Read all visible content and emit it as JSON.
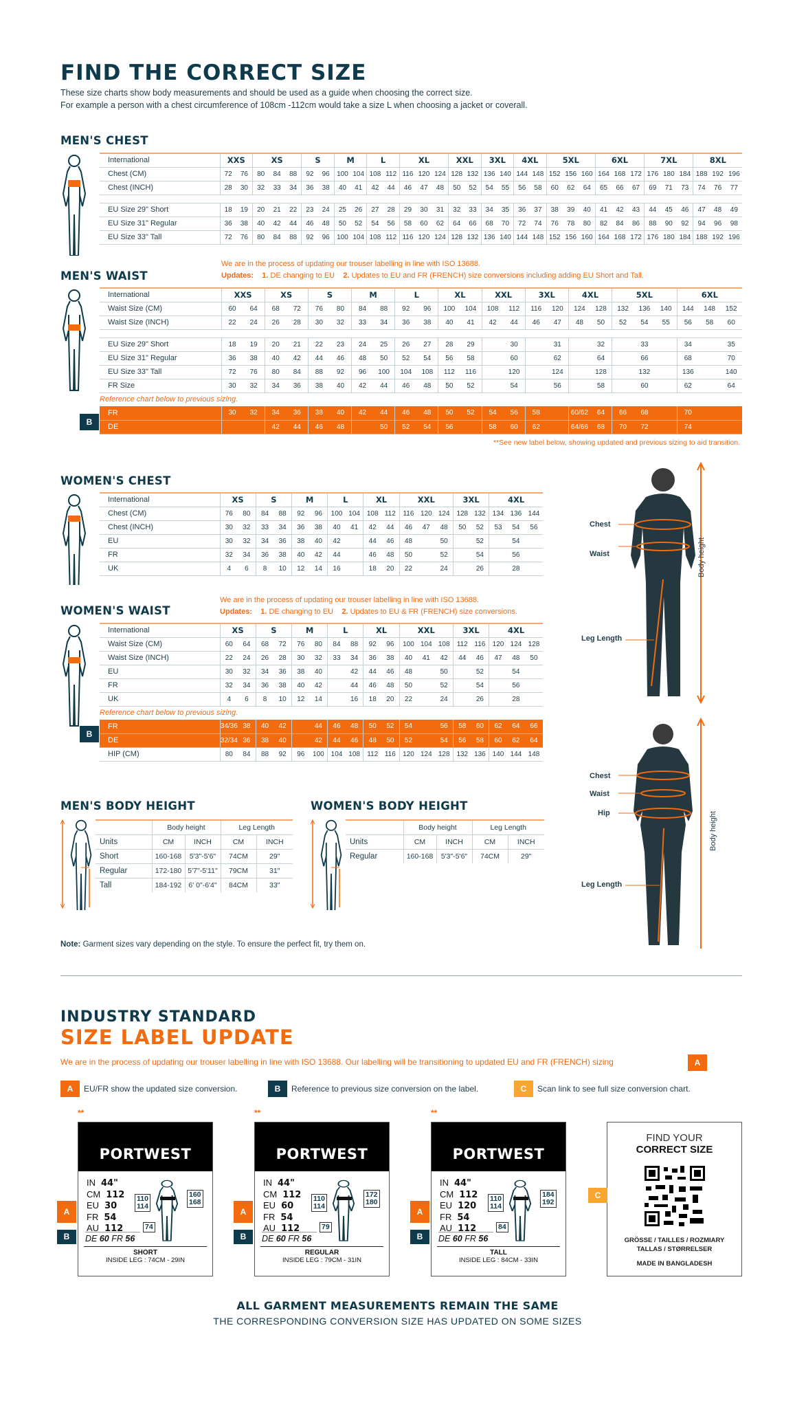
{
  "header": {
    "title": "FIND THE CORRECT SIZE",
    "intro": [
      "These size charts show body measurements and should be used as a guide when choosing the correct size.",
      "For example a person with a chest circumference of 108cm -112cm would take a size L when choosing a jacket or coverall."
    ]
  },
  "colors": {
    "navy": "#0f3a4b",
    "orange": "#f26b0f",
    "amber": "#f8a531"
  },
  "mens_chest": {
    "title": "MEN'S CHEST",
    "sizes": [
      {
        "label": "XXS",
        "span": 2
      },
      {
        "label": "XS",
        "span": 3
      },
      {
        "label": "S",
        "span": 2
      },
      {
        "label": "M",
        "span": 2
      },
      {
        "label": "L",
        "span": 2
      },
      {
        "label": "XL",
        "span": 3
      },
      {
        "label": "XXL",
        "span": 2
      },
      {
        "label": "3XL",
        "span": 2
      },
      {
        "label": "4XL",
        "span": 2
      },
      {
        "label": "5XL",
        "span": 3
      },
      {
        "label": "6XL",
        "span": 3
      },
      {
        "label": "7XL",
        "span": 3
      },
      {
        "label": "8XL",
        "span": 3
      }
    ],
    "header_label": "International",
    "rows": [
      {
        "label": "Chest (CM)",
        "values": [
          "72",
          "76",
          "80",
          "84",
          "88",
          "92",
          "96",
          "100",
          "104",
          "108",
          "112",
          "116",
          "120",
          "124",
          "128",
          "132",
          "136",
          "140",
          "144",
          "148",
          "152",
          "156",
          "160",
          "164",
          "168",
          "172",
          "176",
          "180",
          "184",
          "188",
          "192",
          "196"
        ]
      },
      {
        "label": "Chest (INCH)",
        "values": [
          "28",
          "30",
          "32",
          "33",
          "34",
          "36",
          "38",
          "40",
          "41",
          "42",
          "44",
          "46",
          "47",
          "48",
          "50",
          "52",
          "54",
          "55",
          "56",
          "58",
          "60",
          "62",
          "64",
          "65",
          "66",
          "67",
          "69",
          "71",
          "73",
          "74",
          "76",
          "77"
        ]
      },
      {
        "gap": true
      },
      {
        "label": "EU Size 29\" Short",
        "values": [
          "18",
          "19",
          "20",
          "21",
          "22",
          "23",
          "24",
          "25",
          "26",
          "27",
          "28",
          "29",
          "30",
          "31",
          "32",
          "33",
          "34",
          "35",
          "36",
          "37",
          "38",
          "39",
          "40",
          "41",
          "42",
          "43",
          "44",
          "45",
          "46",
          "47",
          "48",
          "49"
        ]
      },
      {
        "label": "EU Size 31\" Regular",
        "values": [
          "36",
          "38",
          "40",
          "42",
          "44",
          "46",
          "48",
          "50",
          "52",
          "54",
          "56",
          "58",
          "60",
          "62",
          "64",
          "66",
          "68",
          "70",
          "72",
          "74",
          "76",
          "78",
          "80",
          "82",
          "84",
          "86",
          "88",
          "90",
          "92",
          "94",
          "96",
          "98"
        ]
      },
      {
        "label": "EU Size 33\" Tall",
        "values": [
          "72",
          "76",
          "80",
          "84",
          "88",
          "92",
          "96",
          "100",
          "104",
          "108",
          "112",
          "116",
          "120",
          "124",
          "128",
          "132",
          "136",
          "140",
          "144",
          "148",
          "152",
          "156",
          "160",
          "164",
          "168",
          "172",
          "176",
          "180",
          "184",
          "188",
          "192",
          "196"
        ]
      }
    ]
  },
  "mens_waist": {
    "title": "MEN'S WAIST",
    "notice": "We are in the process of updating our trouser labelling in line with ISO 13688.",
    "updates_label": "Updates:",
    "update_1_num": "1.",
    "update_1": "DE changing to EU",
    "update_2_num": "2.",
    "update_2": "Updates to EU and FR (FRENCH) size conversions including adding EU Short and Tall.",
    "header_label": "International",
    "sizes": [
      {
        "label": "XXS",
        "span": 2
      },
      {
        "label": "XS",
        "span": 2
      },
      {
        "label": "S",
        "span": 2
      },
      {
        "label": "M",
        "span": 2
      },
      {
        "label": "L",
        "span": 2
      },
      {
        "label": "XL",
        "span": 2
      },
      {
        "label": "XXL",
        "span": 2
      },
      {
        "label": "3XL",
        "span": 2
      },
      {
        "label": "4XL",
        "span": 2
      },
      {
        "label": "5XL",
        "span": 3
      },
      {
        "label": "6XL",
        "span": 3
      }
    ],
    "rows": [
      {
        "label": "Waist Size (CM)",
        "values": [
          "60",
          "64",
          "68",
          "72",
          "76",
          "80",
          "84",
          "88",
          "92",
          "96",
          "100",
          "104",
          "108",
          "112",
          "116",
          "120",
          "124",
          "128",
          "132",
          "136",
          "140",
          "144",
          "148",
          "152"
        ]
      },
      {
        "label": "Waist Size (INCH)",
        "values": [
          "22",
          "24",
          "26",
          "28",
          "30",
          "32",
          "33",
          "34",
          "36",
          "38",
          "40",
          "41",
          "42",
          "44",
          "46",
          "47",
          "48",
          "50",
          "52",
          "54",
          "55",
          "56",
          "58",
          "60"
        ]
      },
      {
        "gap": true
      },
      {
        "label": "EU Size 29\" Short",
        "values": [
          "18",
          "19",
          "20",
          "21",
          "22",
          "23",
          "24",
          "25",
          "26",
          "27",
          "28",
          "29",
          "",
          "30",
          "",
          "31",
          "",
          "32",
          "",
          "33",
          "",
          "34",
          "",
          "35"
        ]
      },
      {
        "label": "EU Size 31\" Regular",
        "values": [
          "36",
          "38",
          "40",
          "42",
          "44",
          "46",
          "48",
          "50",
          "52",
          "54",
          "56",
          "58",
          "",
          "60",
          "",
          "62",
          "",
          "64",
          "",
          "66",
          "",
          "68",
          "",
          "70"
        ]
      },
      {
        "label": "EU Size 33\" Tall",
        "values": [
          "72",
          "76",
          "80",
          "84",
          "88",
          "92",
          "96",
          "100",
          "104",
          "108",
          "112",
          "116",
          "",
          "120",
          "",
          "124",
          "",
          "128",
          "",
          "132",
          "",
          "136",
          "",
          "140"
        ]
      },
      {
        "label": "FR Size",
        "values": [
          "30",
          "32",
          "34",
          "36",
          "38",
          "40",
          "42",
          "44",
          "46",
          "48",
          "50",
          "52",
          "",
          "54",
          "",
          "56",
          "",
          "58",
          "",
          "60",
          "",
          "62",
          "",
          "64"
        ]
      },
      {
        "ref": "Reference chart below to previous sizing."
      },
      {
        "label": "FR",
        "orange": true,
        "values": [
          "30",
          "32",
          "34",
          "36",
          "38",
          "40",
          "42",
          "44",
          "46",
          "48",
          "50",
          "52",
          "54",
          "56",
          "58",
          "",
          "60/62",
          "64",
          "66",
          "68",
          "",
          "70",
          "",
          ""
        ]
      },
      {
        "label": "DE",
        "orange": true,
        "values": [
          "",
          "",
          "42",
          "44",
          "46",
          "48",
          "",
          "50",
          "52",
          "54",
          "56",
          "",
          "58",
          "60",
          "62",
          "",
          "64/66",
          "68",
          "70",
          "72",
          "",
          "74",
          "",
          ""
        ]
      }
    ],
    "footnote": "**See new label below, showing updated and previous sizing to aid transition."
  },
  "womens_chest": {
    "title": "WOMEN'S CHEST",
    "header_label": "International",
    "sizes": [
      {
        "label": "XS",
        "span": 2
      },
      {
        "label": "S",
        "span": 2
      },
      {
        "label": "M",
        "span": 2
      },
      {
        "label": "L",
        "span": 2
      },
      {
        "label": "XL",
        "span": 2
      },
      {
        "label": "XXL",
        "span": 3
      },
      {
        "label": "3XL",
        "span": 2
      },
      {
        "label": "4XL",
        "span": 3
      }
    ],
    "rows": [
      {
        "label": "Chest (CM)",
        "values": [
          "76",
          "80",
          "84",
          "88",
          "92",
          "96",
          "100",
          "104",
          "108",
          "112",
          "116",
          "120",
          "124",
          "128",
          "132",
          "134",
          "136",
          "144"
        ]
      },
      {
        "label": "Chest (INCH)",
        "values": [
          "30",
          "32",
          "33",
          "34",
          "36",
          "38",
          "40",
          "41",
          "42",
          "44",
          "46",
          "47",
          "48",
          "50",
          "52",
          "53",
          "54",
          "56"
        ]
      },
      {
        "label": "EU",
        "values": [
          "30",
          "32",
          "34",
          "36",
          "38",
          "40",
          "42",
          "",
          "44",
          "46",
          "48",
          "",
          "50",
          "",
          "52",
          "",
          "54",
          ""
        ]
      },
      {
        "label": "FR",
        "values": [
          "32",
          "34",
          "36",
          "38",
          "40",
          "42",
          "44",
          "",
          "46",
          "48",
          "50",
          "",
          "52",
          "",
          "54",
          "",
          "56",
          ""
        ]
      },
      {
        "label": "UK",
        "values": [
          "4",
          "6",
          "8",
          "10",
          "12",
          "14",
          "16",
          "",
          "18",
          "20",
          "22",
          "",
          "24",
          "",
          "26",
          "",
          "28",
          ""
        ]
      }
    ]
  },
  "womens_waist": {
    "title": "WOMEN'S WAIST",
    "notice": "We are in the process of updating our trouser labelling in line with ISO 13688.",
    "updates_label": "Updates:",
    "update_1_num": "1.",
    "update_1": "DE changing to EU",
    "update_2_num": "2.",
    "update_2": "Updates to EU & FR (FRENCH) size conversions.",
    "header_label": "International",
    "sizes": [
      {
        "label": "XS",
        "span": 2
      },
      {
        "label": "S",
        "span": 2
      },
      {
        "label": "M",
        "span": 2
      },
      {
        "label": "L",
        "span": 2
      },
      {
        "label": "XL",
        "span": 2
      },
      {
        "label": "XXL",
        "span": 3
      },
      {
        "label": "3XL",
        "span": 2
      },
      {
        "label": "4XL",
        "span": 3
      }
    ],
    "rows": [
      {
        "label": "Waist Size (CM)",
        "values": [
          "60",
          "64",
          "68",
          "72",
          "76",
          "80",
          "84",
          "88",
          "92",
          "96",
          "100",
          "104",
          "108",
          "112",
          "116",
          "120",
          "124",
          "128"
        ]
      },
      {
        "label": "Waist Size (INCH)",
        "values": [
          "22",
          "24",
          "26",
          "28",
          "30",
          "32",
          "33",
          "34",
          "36",
          "38",
          "40",
          "41",
          "42",
          "44",
          "46",
          "47",
          "48",
          "50"
        ]
      },
      {
        "label": "EU",
        "values": [
          "30",
          "32",
          "34",
          "36",
          "38",
          "40",
          "",
          "42",
          "44",
          "46",
          "48",
          "",
          "50",
          "",
          "52",
          "",
          "54",
          ""
        ]
      },
      {
        "label": "FR",
        "values": [
          "32",
          "34",
          "36",
          "38",
          "40",
          "42",
          "",
          "44",
          "46",
          "48",
          "50",
          "",
          "52",
          "",
          "54",
          "",
          "56",
          ""
        ]
      },
      {
        "label": "UK",
        "values": [
          "4",
          "6",
          "8",
          "10",
          "12",
          "14",
          "",
          "16",
          "18",
          "20",
          "22",
          "",
          "24",
          "",
          "26",
          "",
          "28",
          ""
        ]
      },
      {
        "ref": "Reference chart below to previous sizing."
      },
      {
        "label": "FR",
        "orange": true,
        "values": [
          "34/36",
          "38",
          "40",
          "42",
          "",
          "44",
          "46",
          "48",
          "50",
          "52",
          "54",
          "",
          "56",
          "58",
          "60",
          "62",
          "64",
          "66"
        ]
      },
      {
        "label": "DE",
        "orange": true,
        "values": [
          "32/34",
          "36",
          "38",
          "40",
          "",
          "42",
          "44",
          "46",
          "48",
          "50",
          "52",
          "",
          "54",
          "56",
          "58",
          "60",
          "62",
          "64"
        ]
      },
      {
        "label": "HIP (CM)",
        "values": [
          "80",
          "84",
          "88",
          "92",
          "96",
          "100",
          "104",
          "108",
          "112",
          "116",
          "120",
          "124",
          "128",
          "132",
          "136",
          "140",
          "144",
          "148"
        ]
      }
    ]
  },
  "badges": {
    "a": "A",
    "b": "B",
    "c": "C"
  },
  "mens_height": {
    "title": "MEN'S BODY HEIGHT",
    "group_body": "Body height",
    "group_leg": "Leg Length",
    "units_label": "Units",
    "units": [
      "CM",
      "INCH",
      "CM",
      "INCH"
    ],
    "rows": [
      {
        "label": "Short",
        "values": [
          "160-168",
          "5'3\"-5'6\"",
          "74CM",
          "29\""
        ]
      },
      {
        "label": "Regular",
        "values": [
          "172-180",
          "5'7\"-5'11\"",
          "79CM",
          "31\""
        ]
      },
      {
        "label": "Tall",
        "values": [
          "184-192",
          "6' 0\"-6'4\"",
          "84CM",
          "33\""
        ]
      }
    ]
  },
  "womens_height": {
    "title": "WOMEN'S BODY HEIGHT",
    "group_body": "Body height",
    "group_leg": "Leg Length",
    "units_label": "Units",
    "units": [
      "CM",
      "INCH",
      "CM",
      "INCH"
    ],
    "rows": [
      {
        "label": "Regular",
        "values": [
          "160-168",
          "5'3\"-5'6\"",
          "74CM",
          "29\""
        ]
      }
    ]
  },
  "photos": {
    "man": {
      "chest": "Chest",
      "waist": "Waist",
      "leg": "Leg Length",
      "height": "Body height"
    },
    "woman": {
      "chest": "Chest",
      "waist": "Waist",
      "hip": "Hip",
      "leg": "Leg Length",
      "height": "Body height"
    }
  },
  "garment_note": {
    "bold": "Note:",
    "text": " Garment sizes vary depending on the style. To ensure the perfect fit, try them on."
  },
  "label_update": {
    "title_1": "INDUSTRY STANDARD",
    "title_2": "SIZE LABEL UPDATE",
    "sentence": "We are in the process of updating our trouser labelling in line with ISO 13688. Our labelling will be transitioning to updated EU and FR (FRENCH) sizing",
    "legend_a": "EU/FR show the updated size conversion.",
    "legend_b": "Reference to previous size conversion on the label.",
    "legend_c": "Scan link to see full size conversion chart.",
    "cards": [
      {
        "marker": "**",
        "brand": "PORTWEST",
        "in": "44\"",
        "cm": "112",
        "eu": "30",
        "fr": "54",
        "au": "112",
        "de_old": "60",
        "fr_old": "56",
        "waist_box": [
          "110",
          "114"
        ],
        "height_box": [
          "160",
          "168"
        ],
        "leg_box": "74",
        "fit": "SHORT",
        "inside_leg": "INSIDE LEG : 74CM - 29IN"
      },
      {
        "marker": "**",
        "brand": "PORTWEST",
        "in": "44\"",
        "cm": "112",
        "eu": "60",
        "fr": "54",
        "au": "112",
        "de_old": "60",
        "fr_old": "56",
        "waist_box": [
          "110",
          "114"
        ],
        "height_box": [
          "172",
          "180"
        ],
        "leg_box": "79",
        "fit": "REGULAR",
        "inside_leg": "INSIDE LEG : 79CM - 31IN"
      },
      {
        "marker": "**",
        "brand": "PORTWEST",
        "in": "44\"",
        "cm": "112",
        "eu": "120",
        "fr": "54",
        "au": "112",
        "de_old": "60",
        "fr_old": "56",
        "waist_box": [
          "110",
          "114"
        ],
        "height_box": [
          "184",
          "192"
        ],
        "leg_box": "84",
        "fit": "TALL",
        "inside_leg": "INSIDE LEG : 84CM - 33IN"
      }
    ],
    "line_keys": {
      "in": "IN",
      "cm": "CM",
      "eu": "EU",
      "fr": "FR",
      "au": "AU",
      "de": "DE"
    },
    "qr": {
      "line1": "FIND YOUR",
      "line2": "CORRECT SIZE",
      "langs_1": "GRÖSSE / TAILLES / ROZMIARY",
      "langs_2": "TALLAS  / STØRRELSER",
      "origin": "MADE IN BANGLADESH"
    },
    "footer_1": "ALL GARMENT MEASUREMENTS REMAIN THE SAME",
    "footer_2": "THE CORRESPONDING CONVERSION SIZE HAS UPDATED ON SOME SIZES"
  }
}
